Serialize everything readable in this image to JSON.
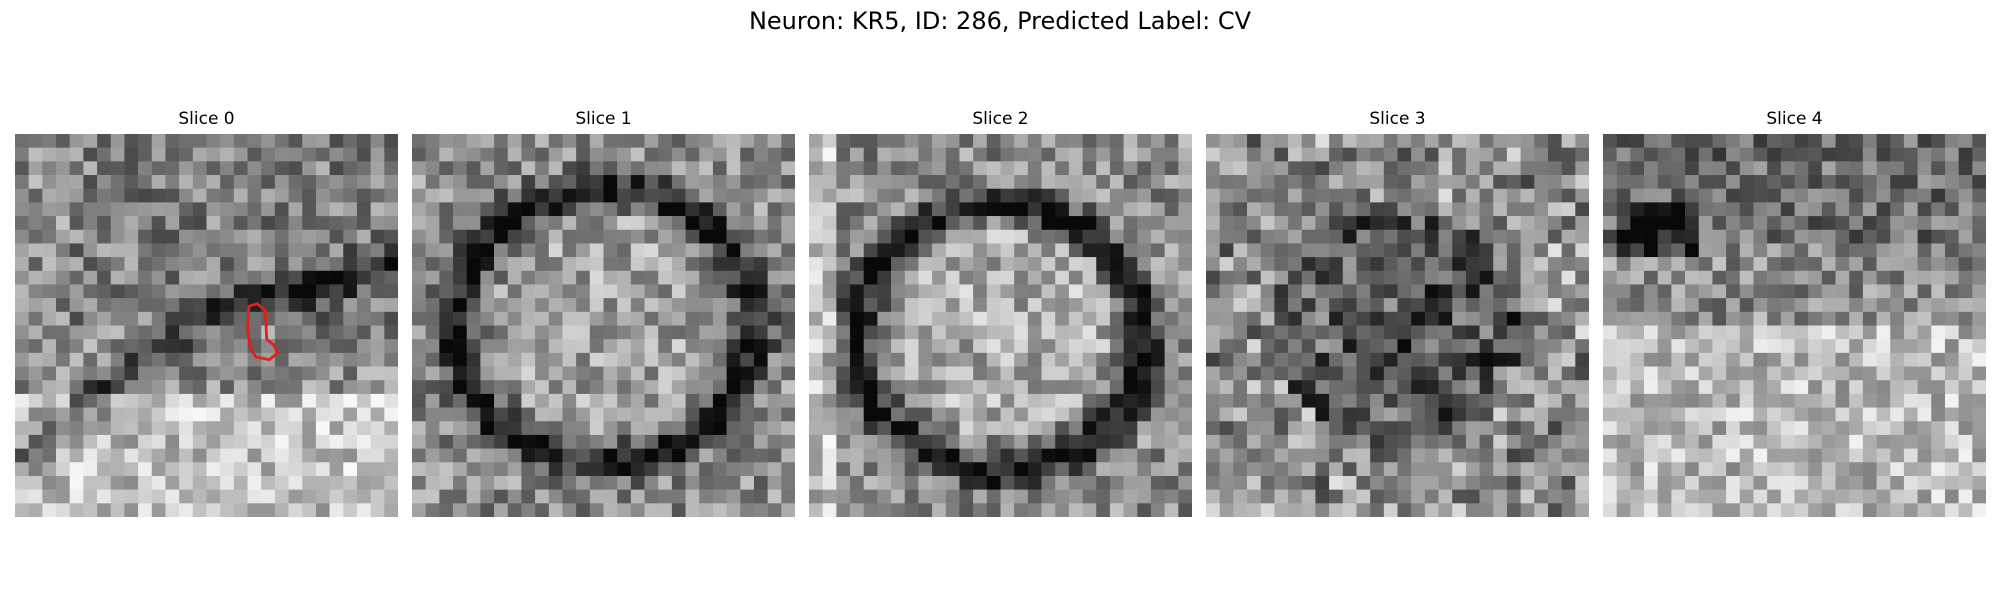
{
  "figure": {
    "title": "Neuron: KR5, ID: 286, Predicted Label: CV"
  },
  "panels": [
    {
      "title": "Slice 0",
      "seed": 11,
      "contour": true,
      "contour_color": "#e0201c",
      "pattern": "cell-boundary-lower-left"
    },
    {
      "title": "Slice 1",
      "seed": 23,
      "contour": false,
      "pattern": "ring"
    },
    {
      "title": "Slice 2",
      "seed": 37,
      "contour": false,
      "pattern": "ring-bright-center"
    },
    {
      "title": "Slice 3",
      "seed": 41,
      "contour": false,
      "pattern": "dark-noisy-center"
    },
    {
      "title": "Slice 4",
      "seed": 53,
      "contour": false,
      "pattern": "bright-lower"
    }
  ],
  "colors": {
    "background": "#ffffff",
    "colormap": "grayscale"
  }
}
